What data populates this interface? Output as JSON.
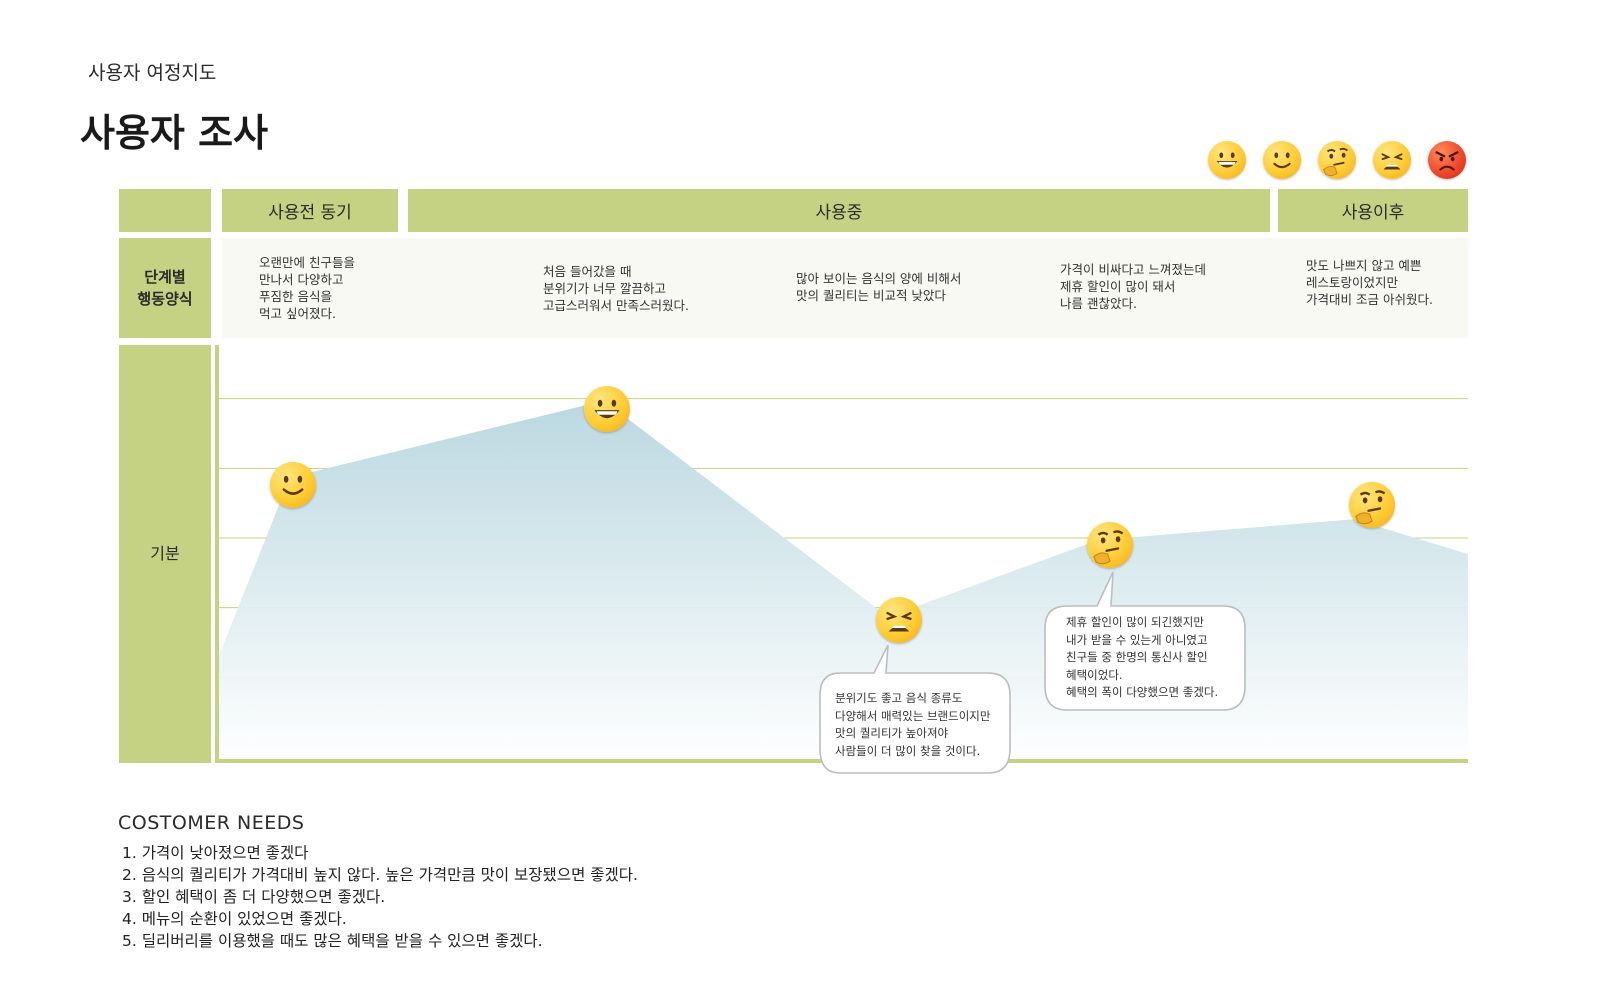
{
  "header": {
    "subtitle": "사용자 여정지도",
    "title": "사용자 조사"
  },
  "legend_icons": [
    "grinning-face-icon",
    "smiling-face-icon",
    "thinking-face-icon",
    "weary-face-icon",
    "angry-face-icon"
  ],
  "phases": {
    "before": "사용전 동기",
    "during": "사용중",
    "after": "사용이후"
  },
  "rows": {
    "behavior": "단계별\n행동양식",
    "mood": "기분"
  },
  "behaviors": [
    "오랜만에 친구들을\n만나서 다양하고\n푸짐한 음식을\n먹고 싶어졌다.",
    "처음 들어갔을 때\n분위기가 너무 깔끔하고\n고급스러워서 만족스러웠다.",
    "많아 보이는 음식의 양에 비해서\n맛의 퀄리티는 비교적 낮았다",
    "가격이 비싸다고 느껴졌는데\n제휴 할인이 많이 돼서\n나름 괜찮았다.",
    "맛도 나쁘지 않고 예쁜\n레스토랑이었지만\n가격대비 조금 아쉬웠다."
  ],
  "bubbles": [
    "분위기도 좋고 음식 종류도\n다양해서 매력있는 브랜드이지만\n맛의 퀄리티가 높아져야\n사람들이 더 많이 찾을 것이다.",
    "제휴 할인이 많이 되긴했지만\n내가 받을 수 있는게 아니였고\n친구들 중 한명의 통신사 할인\n혜택이었다.\n혜택의 폭이 다양했으면 좋겠다."
  ],
  "chart_data": {
    "type": "area",
    "mood_scale": [
      "angry",
      "weary",
      "thinking",
      "smiling",
      "grinning"
    ],
    "ylim": [
      0,
      6
    ],
    "grid": true,
    "points": [
      {
        "step": 0,
        "mood": 1.4,
        "icon": ""
      },
      {
        "step": 1,
        "mood": 4.1,
        "icon": "smiling-face-icon"
      },
      {
        "step": 2,
        "mood": 5.2,
        "icon": "grinning-face-icon"
      },
      {
        "step": 3,
        "mood": 2.1,
        "icon": "weary-face-icon"
      },
      {
        "step": 4,
        "mood": 3.2,
        "icon": "thinking-face-icon"
      },
      {
        "step": 5,
        "mood": 3.5,
        "icon": "thinking-face-icon"
      },
      {
        "step": 6,
        "mood": 3.0,
        "icon": ""
      }
    ],
    "colors": {
      "fill_top": "#b7d6df",
      "fill_bottom": "#ffffff",
      "grid": "#c5d283",
      "axis": "#c5d283"
    }
  },
  "needs": {
    "title": "COSTOMER NEEDS",
    "items": [
      "1. 가격이 낮아졌으면 좋겠다",
      "2. 음식의 퀄리티가 가격대비 높지 않다. 높은 가격만큼 맛이 보장됐으면 좋겠다.",
      "3. 할인 혜택이 좀 더 다양했으면 좋겠다.",
      "4. 메뉴의 순환이 있었으면 좋겠다.",
      "5. 딜리버리를 이용했을 때도 많은 혜택을 받을 수 있으면 좋겠다."
    ]
  }
}
